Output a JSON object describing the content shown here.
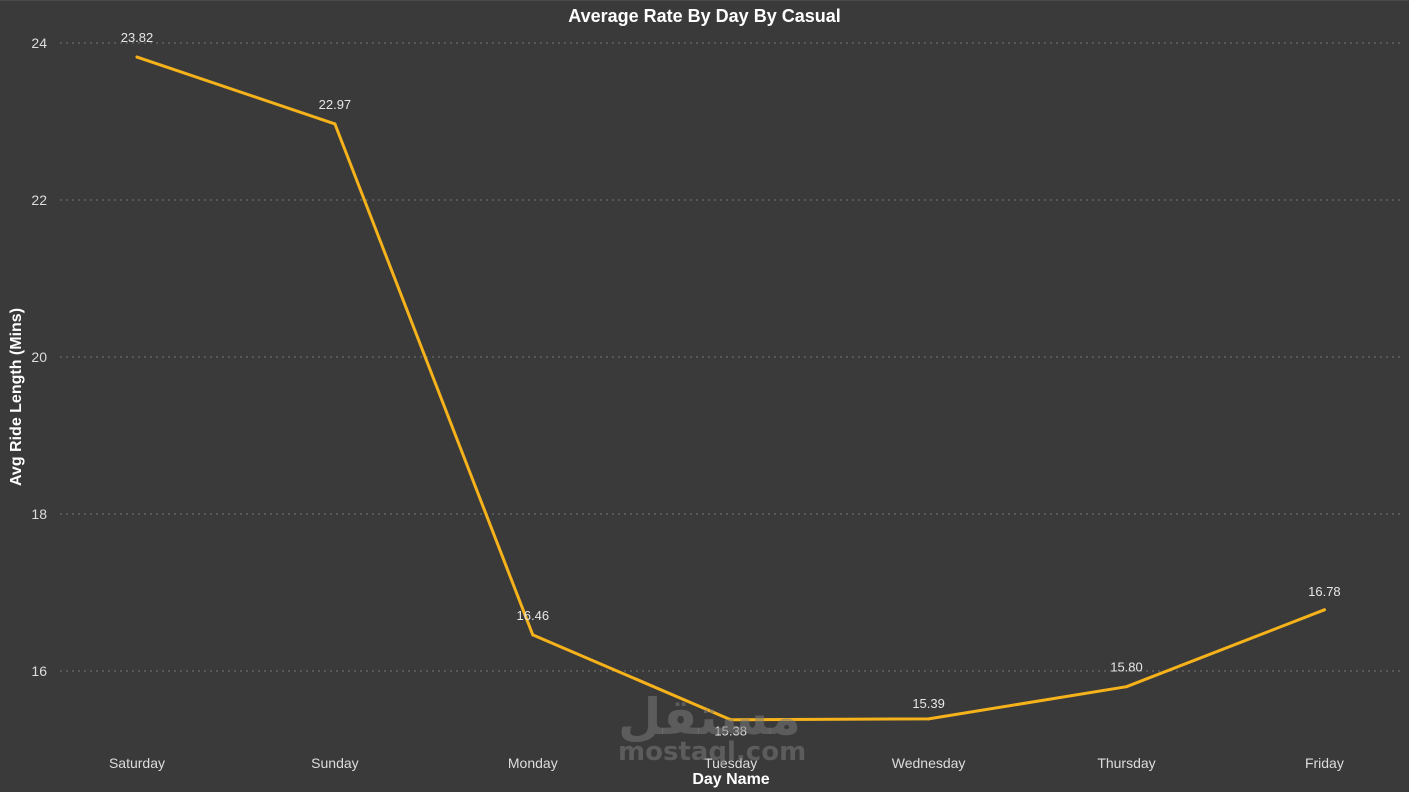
{
  "chart_data": {
    "type": "line",
    "title": "Average Rate By Day By Casual",
    "xlabel": "Day Name",
    "ylabel": "Avg Ride Length (Mins)",
    "categories": [
      "Saturday",
      "Sunday",
      "Monday",
      "Tuesday",
      "Wednesday",
      "Thursday",
      "Friday"
    ],
    "series": [
      {
        "values": [
          23.82,
          22.97,
          16.46,
          15.38,
          15.39,
          15.8,
          16.78
        ],
        "labels": [
          "23.82",
          "22.97",
          "16.46",
          "15.38",
          "15.39",
          "15.80",
          "16.78"
        ],
        "color": "#f5b21b"
      }
    ],
    "ylim": [
      14.8,
      24
    ],
    "yticks": [
      16,
      18,
      20,
      22,
      24
    ],
    "grid": true,
    "background": "#3a3a3a",
    "gridline_color": "#777777"
  },
  "watermark": {
    "arabic": "مستقل",
    "latin": "mostaql.com"
  }
}
